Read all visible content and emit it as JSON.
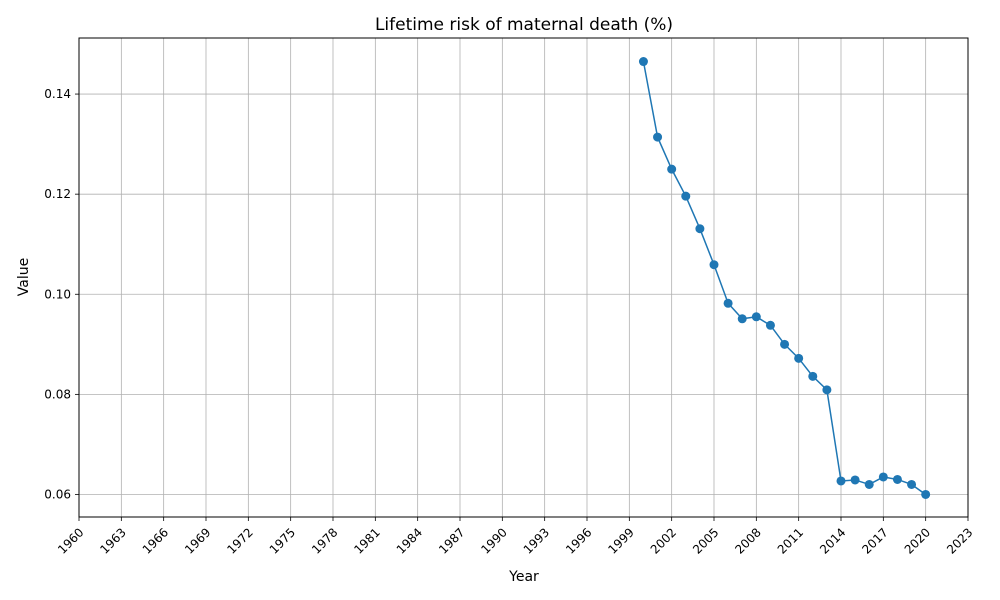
{
  "chart_data": {
    "type": "line",
    "title": "Lifetime risk of maternal death (%)",
    "xlabel": "Year",
    "ylabel": "Value",
    "xlim": [
      1960,
      2023
    ],
    "ylim": [
      0.0555,
      0.1512
    ],
    "grid": true,
    "x_ticks": [
      "1960",
      "1963",
      "1966",
      "1969",
      "1972",
      "1975",
      "1978",
      "1981",
      "1984",
      "1987",
      "1990",
      "1993",
      "1996",
      "1999",
      "2002",
      "2005",
      "2008",
      "2011",
      "2014",
      "2017",
      "2020",
      "2023"
    ],
    "y_ticks": [
      "0.06",
      "0.08",
      "0.10",
      "0.12",
      "0.14"
    ],
    "color": "#1f77b4",
    "series": [
      {
        "x": [
          2000,
          2001,
          2002,
          2003,
          2004,
          2005,
          2006,
          2007,
          2008,
          2009,
          2010,
          2011,
          2012,
          2013,
          2014,
          2015,
          2016,
          2017,
          2018,
          2019,
          2020
        ],
        "values": [
          0.1465,
          0.1314,
          0.125,
          0.1196,
          0.1131,
          0.1059,
          0.0982,
          0.0951,
          0.0955,
          0.0938,
          0.09,
          0.0872,
          0.0836,
          0.0809,
          0.0627,
          0.0629,
          0.062,
          0.0635,
          0.063,
          0.062,
          0.06
        ]
      }
    ]
  }
}
